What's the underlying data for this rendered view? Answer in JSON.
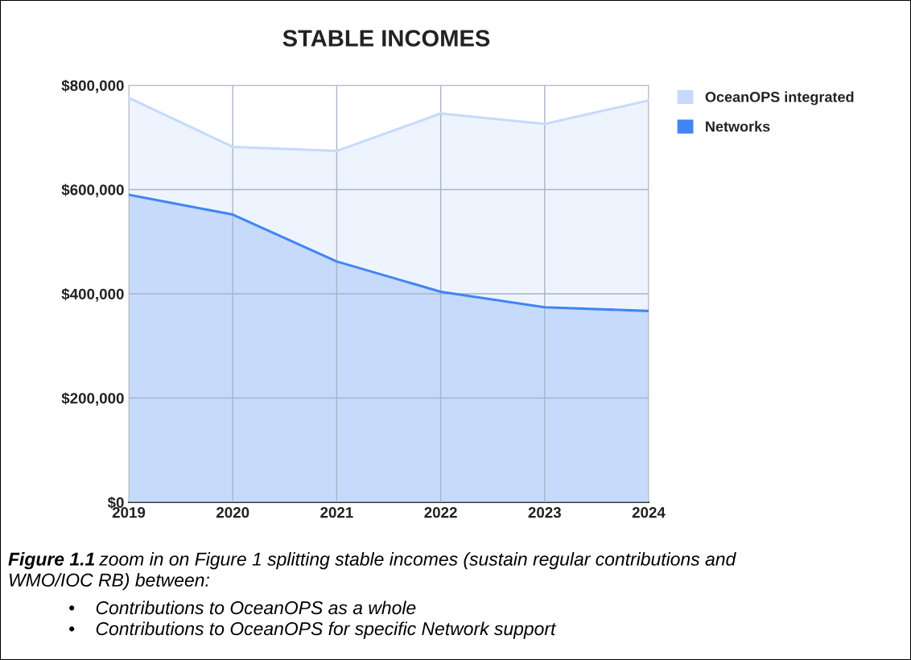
{
  "chart_data": {
    "type": "area",
    "title": "STABLE INCOMES",
    "stacked": true,
    "x": [
      2019,
      2020,
      2021,
      2022,
      2023,
      2024
    ],
    "series": [
      {
        "name": "Networks",
        "color": "#4285f4",
        "values": [
          590000,
          552000,
          462000,
          404000,
          374000,
          367000
        ]
      },
      {
        "name": "OceanOPS integrated",
        "color": "#c6dafc",
        "values": [
          186000,
          130000,
          212000,
          342000,
          352000,
          404000
        ]
      }
    ],
    "xlim": [
      2019,
      2024
    ],
    "xticks": [
      2019,
      2020,
      2021,
      2022,
      2023,
      2024
    ],
    "ylim": [
      0,
      800000
    ],
    "yticks": [
      {
        "value": 0,
        "label": "$0"
      },
      {
        "value": 200000,
        "label": "$200,000"
      },
      {
        "value": 400000,
        "label": "$400,000"
      },
      {
        "value": 600000,
        "label": "$600,000"
      },
      {
        "value": 800000,
        "label": "$800,000"
      }
    ],
    "grid": true,
    "legend": "right",
    "annotations": [
      "Figure 1.1",
      "zoom in on Figure 1 splitting stable incomes (sustain regular contributions and",
      "WMO/IOC RB) between:",
      "•    Contributions to OceanOPS as a whole",
      "•    Contributions to OceanOPS for specific Network support"
    ]
  }
}
